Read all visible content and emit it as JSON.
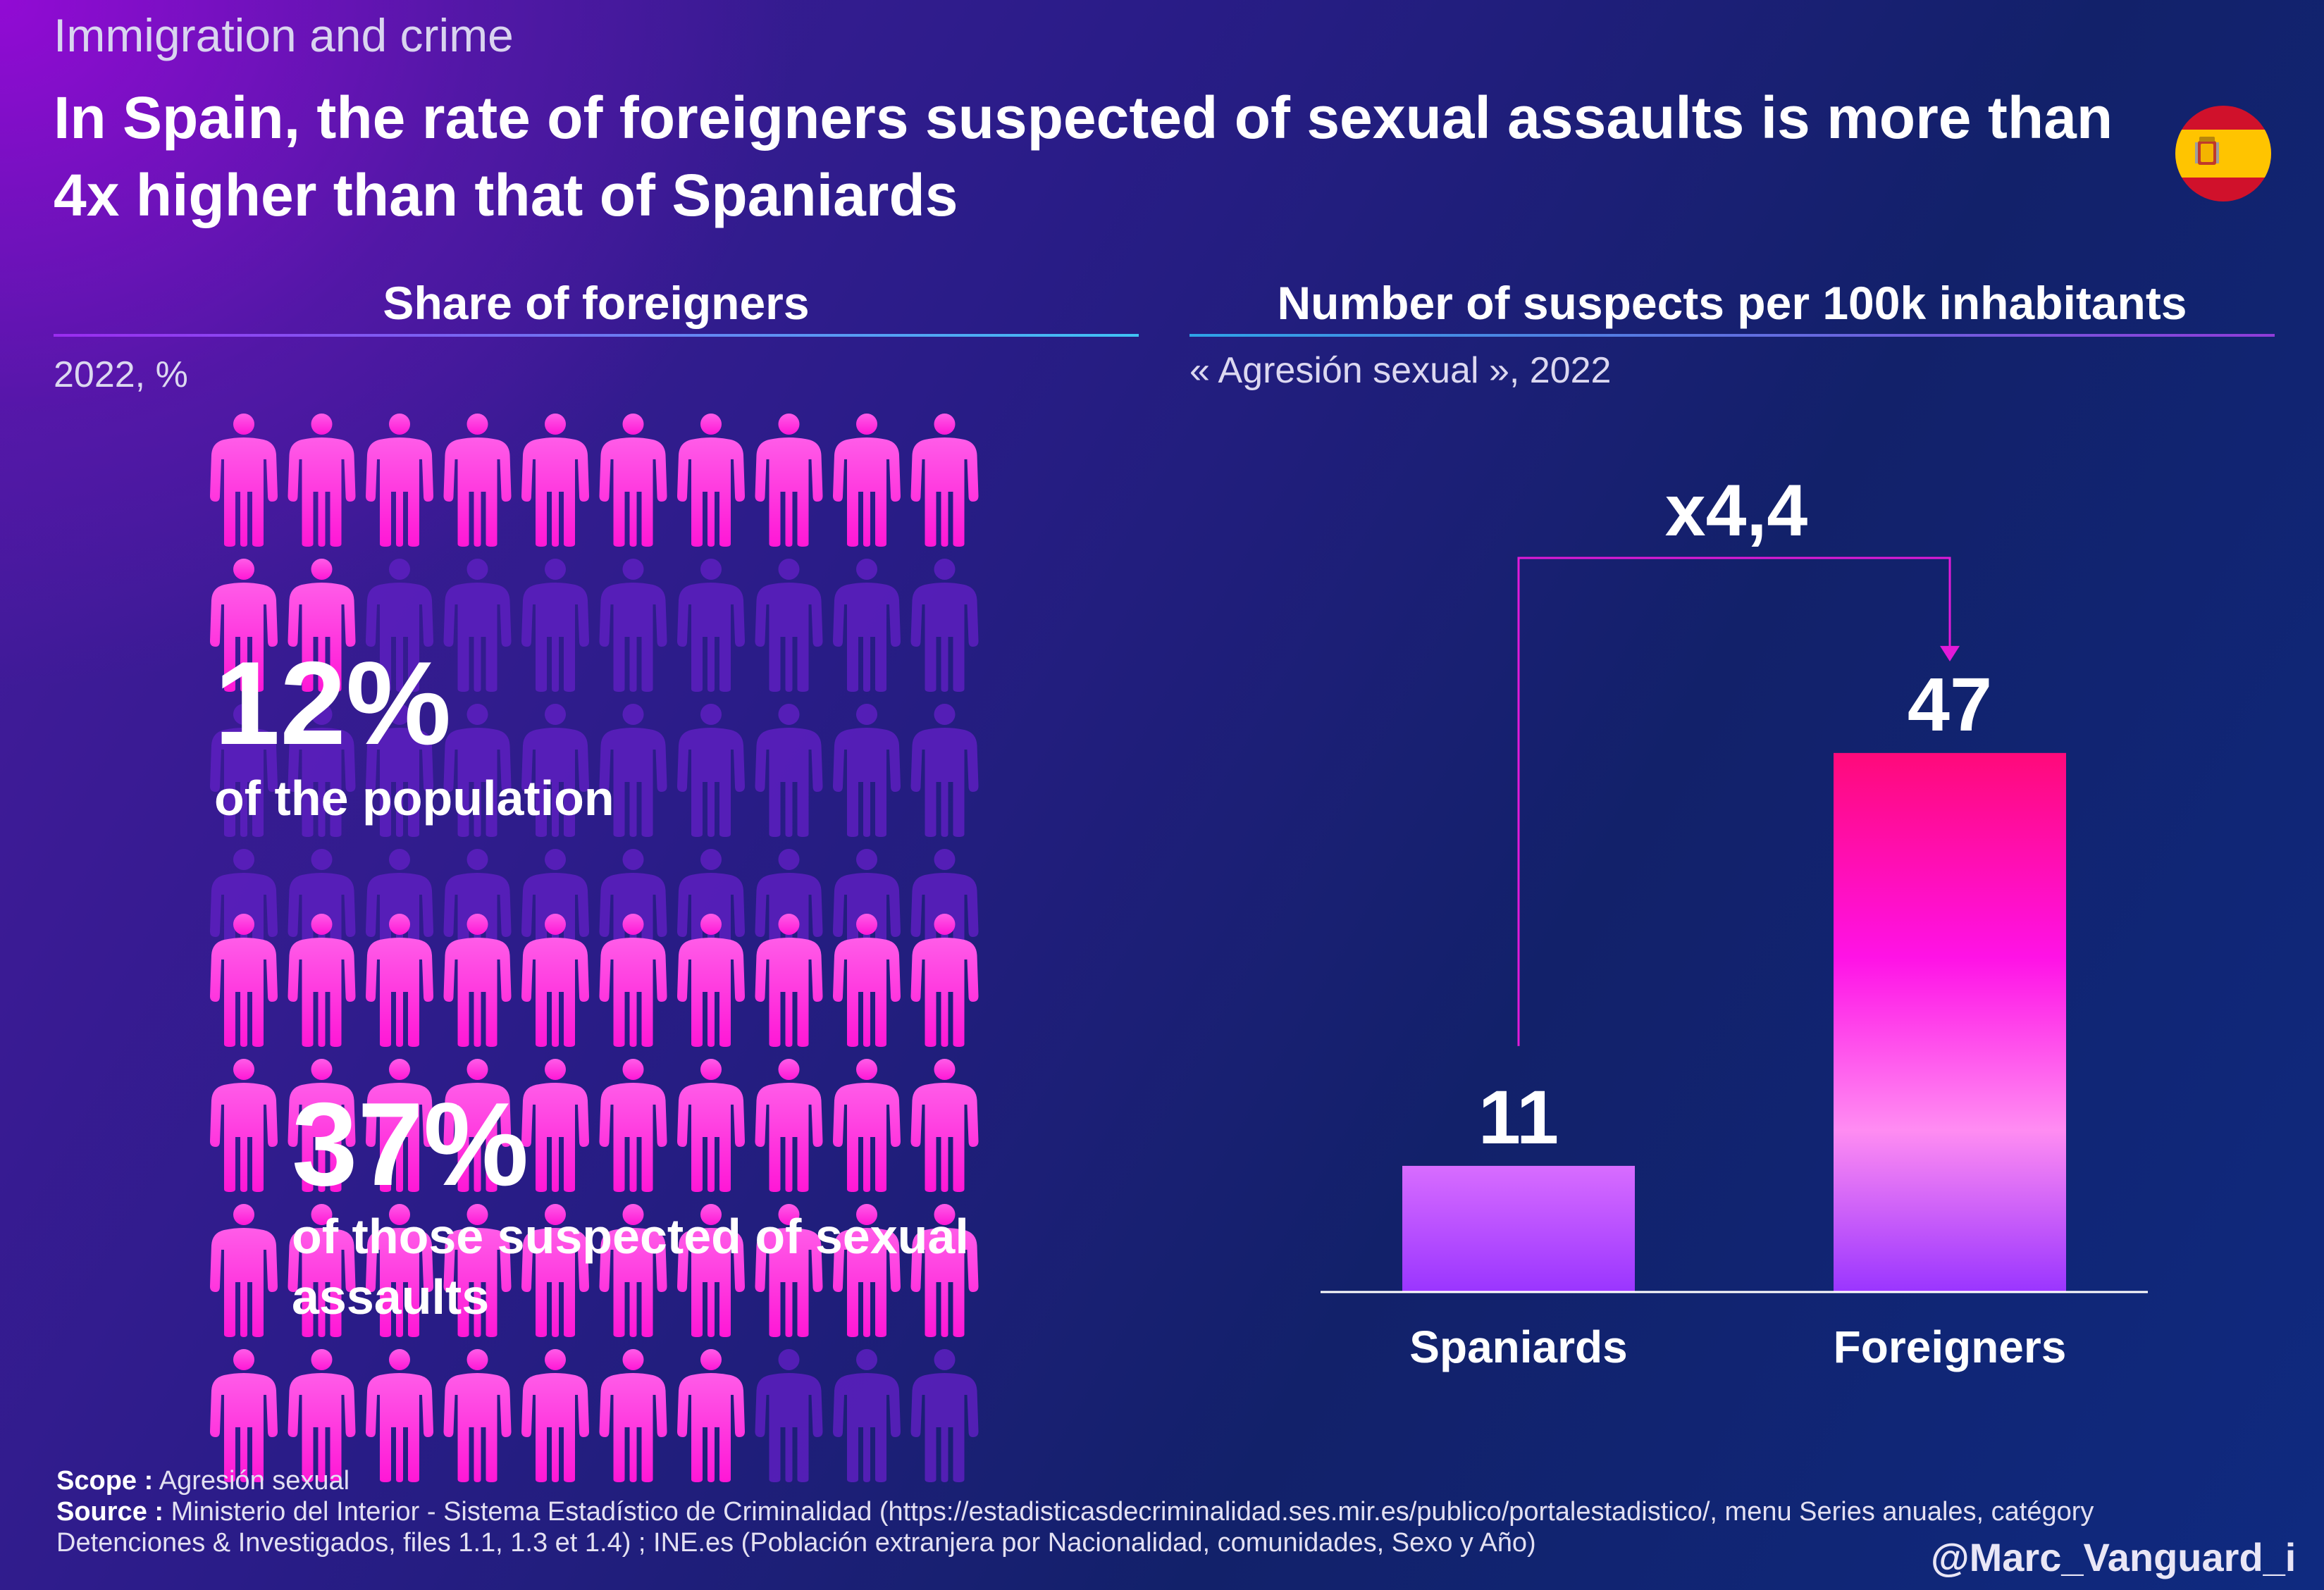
{
  "kicker": "Immigration and crime",
  "headline": "In Spain, the rate of foreigners suspected of sexual assaults is more than 4x higher than that of Spaniards",
  "flag_icon": "spain-flag-icon",
  "colors": {
    "highlight_pink": "#ff2ad9",
    "muted_person": "#5d1fc0",
    "bar_spaniards_top": "#d86cff",
    "bar_spaniards_bottom": "#9a35ff",
    "bar_foreigners_top": "#ff0a7a",
    "bar_foreigners_mid": "#ff12e6",
    "bar_foreigners_bottom": "#9a35ff",
    "bracket": "#e21ad8"
  },
  "left_panel": {
    "title": "Share of foreigners",
    "subtitle": "2022, %",
    "pictograms": [
      {
        "highlighted_people": 12,
        "total_people": 100,
        "value_text": "12%",
        "label": "of the population"
      },
      {
        "highlighted_people": 37,
        "total_people": 100,
        "value_text": "37%",
        "label": "of those suspected of sexual assaults"
      }
    ]
  },
  "right_panel": {
    "title": "Number of suspects per 100k inhabitants",
    "subtitle": "« Agresión sexual », 2022"
  },
  "chart_data": {
    "type": "bar",
    "categories": [
      "Spaniards",
      "Foreigners"
    ],
    "values": [
      11,
      47
    ],
    "value_labels": [
      "11",
      "47"
    ],
    "annotation": "x4,4",
    "ylim": [
      0,
      50
    ],
    "grid": false,
    "legend": "none"
  },
  "footer": {
    "scope_label": "Scope :",
    "scope_text": "Agresión sexual",
    "source_label": "Source :",
    "source_text": "Ministerio del Interior - Sistema Estadístico de Criminalidad (https://estadisticasdecriminalidad.ses.mir.es/publico/portalestadistico/, menu Series anuales, catégory Detenciones & Investigados, files 1.1, 1.3 et 1.4) ; INE.es (Población extranjera por Nacionalidad, comunidades, Sexo y Año)",
    "handle": "@Marc_Vanguard_i"
  }
}
